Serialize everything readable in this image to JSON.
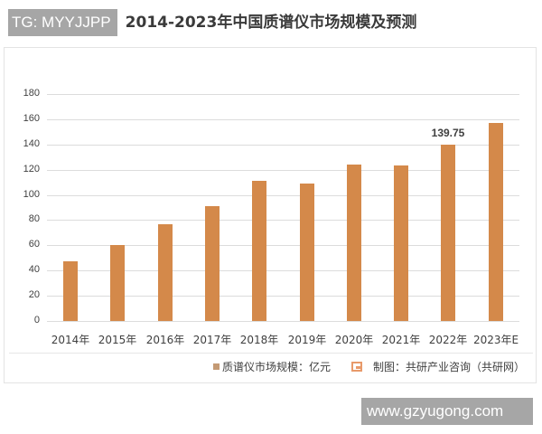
{
  "watermark_top": "TG: MYYJJPP",
  "watermark_bottom": "www.gzyugong.com",
  "chart_data": {
    "type": "bar",
    "title": "2014-2023年中国质谱仪市场规模及预测",
    "categories": [
      "2014年",
      "2015年",
      "2016年",
      "2017年",
      "2018年",
      "2019年",
      "2020年",
      "2021年",
      "2022年",
      "2023年E"
    ],
    "series": [
      {
        "name": "质谱仪市场规模：亿元",
        "values": [
          47,
          60,
          77,
          91,
          111,
          109,
          124,
          123,
          139.75,
          157
        ]
      }
    ],
    "data_labels": [
      {
        "category": "2022年",
        "text": "139.75"
      }
    ],
    "xlabel": "",
    "ylabel": "",
    "ylim": [
      0,
      180
    ],
    "yticks": [
      "0",
      "20",
      "40",
      "60",
      "80",
      "100",
      "120",
      "140",
      "160",
      "180"
    ],
    "grid": true,
    "legend_position": "bottom",
    "bar_color": "#d4894a"
  },
  "legend": {
    "label": "质谱仪市场规模：亿元"
  },
  "source": {
    "label": "制图：共研产业咨询（共研网）"
  }
}
